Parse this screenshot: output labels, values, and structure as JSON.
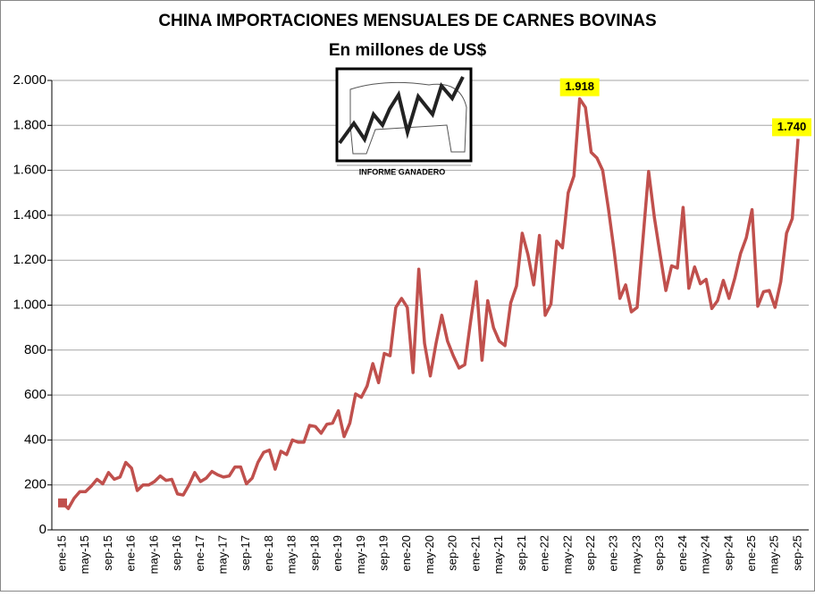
{
  "chart_data": {
    "type": "line",
    "title": "CHINA IMPORTACIONES MENSUALES DE CARNES BOVINAS",
    "subtitle": "En millones de US$",
    "categories": [
      "ene-15",
      null,
      null,
      null,
      "may-15",
      null,
      null,
      null,
      "sep-15",
      null,
      null,
      null,
      "ene-16",
      null,
      null,
      null,
      "may-16",
      null,
      null,
      null,
      "sep-16",
      null,
      null,
      null,
      "ene-17",
      null,
      null,
      null,
      "may-17",
      null,
      null,
      null,
      "sep-17",
      null,
      null,
      null,
      "ene-18",
      null,
      null,
      null,
      "may-18",
      null,
      null,
      null,
      "sep-18",
      null,
      null,
      null,
      "ene-19",
      null,
      null,
      null,
      "may-19",
      null,
      null,
      null,
      "sep-19",
      null,
      null,
      null,
      "ene-20",
      null,
      null,
      null,
      "may-20",
      null,
      null,
      null,
      "sep-20",
      null,
      null,
      null,
      "ene-21",
      null,
      null,
      null,
      "may-21",
      null,
      null,
      null,
      "sep-21",
      null,
      null,
      null,
      "ene-22",
      null,
      null,
      null,
      "may-22",
      null,
      null,
      null,
      "sep-22",
      null,
      null,
      null,
      "ene-23",
      null,
      null,
      null,
      "may-23",
      null,
      null,
      null,
      "sep-23",
      null,
      null,
      null,
      "ene-24",
      null,
      null,
      null,
      "may-24",
      null,
      null,
      null,
      "sep-24",
      null,
      null,
      null,
      "ene-25",
      null,
      null,
      null,
      "may-25",
      null,
      null,
      null,
      "sep-25"
    ],
    "values": [
      120,
      95,
      140,
      170,
      170,
      195,
      225,
      205,
      255,
      225,
      235,
      300,
      275,
      175,
      200,
      200,
      215,
      240,
      220,
      225,
      160,
      155,
      200,
      255,
      215,
      230,
      260,
      245,
      235,
      240,
      280,
      280,
      205,
      230,
      300,
      345,
      355,
      270,
      350,
      335,
      400,
      390,
      390,
      465,
      460,
      430,
      470,
      475,
      530,
      415,
      475,
      605,
      590,
      640,
      740,
      655,
      785,
      775,
      990,
      1030,
      990,
      700,
      1160,
      830,
      685,
      830,
      955,
      840,
      775,
      720,
      735,
      925,
      1105,
      755,
      1020,
      900,
      840,
      820,
      1010,
      1085,
      1320,
      1225,
      1090,
      1310,
      955,
      1005,
      1285,
      1255,
      1500,
      1575,
      1918,
      1880,
      1680,
      1655,
      1600,
      1430,
      1240,
      1030,
      1090,
      970,
      990,
      1290,
      1595,
      1390,
      1225,
      1065,
      1175,
      1165,
      1435,
      1075,
      1170,
      1095,
      1115,
      985,
      1020,
      1110,
      1030,
      1120,
      1230,
      1300,
      1425,
      995,
      1060,
      1065,
      990,
      1105,
      1320,
      1385,
      1740
    ],
    "value_labels": [
      null,
      null,
      null,
      null,
      null,
      null,
      null,
      null,
      null,
      null,
      null,
      null,
      null,
      null,
      null,
      null,
      null,
      null,
      null,
      null,
      null,
      null,
      null,
      null,
      null,
      null,
      null,
      null,
      null,
      null,
      null,
      null,
      null,
      null,
      null,
      null,
      null,
      null,
      null,
      null,
      null,
      null,
      null,
      null,
      null,
      null,
      null,
      null,
      null,
      null,
      null,
      null,
      null,
      null,
      null,
      null,
      null,
      null,
      null,
      null,
      null,
      null,
      null,
      null,
      null,
      null,
      null,
      null,
      null,
      null,
      null,
      null,
      null,
      null,
      null,
      null,
      null,
      null,
      null,
      null,
      null,
      null,
      null,
      null,
      null,
      null,
      null,
      null,
      null,
      null,
      "1.918",
      null,
      null,
      null,
      null,
      null,
      null,
      null,
      null,
      null,
      null,
      null,
      null,
      null,
      null,
      null,
      null,
      null,
      null,
      null,
      null,
      null,
      null,
      null,
      null,
      null,
      null,
      null,
      null,
      null,
      null,
      null,
      null,
      null,
      null,
      null,
      null,
      null,
      "1.740"
    ],
    "color": "#c0504d",
    "ylim": [
      0,
      2000
    ],
    "yticks": [
      0,
      200,
      400,
      600,
      800,
      {
        "value": 1000,
        "label": "1.000"
      },
      {
        "value": 1200,
        "label": "1.200"
      },
      {
        "value": 1400,
        "label": "1.400"
      },
      {
        "value": 1600,
        "label": "1.600"
      },
      {
        "value": 1800,
        "label": "1.800"
      },
      {
        "value": 2000,
        "label": "2.000"
      }
    ],
    "grid": true
  },
  "logo": {
    "text": "INFORME GANADERO"
  }
}
